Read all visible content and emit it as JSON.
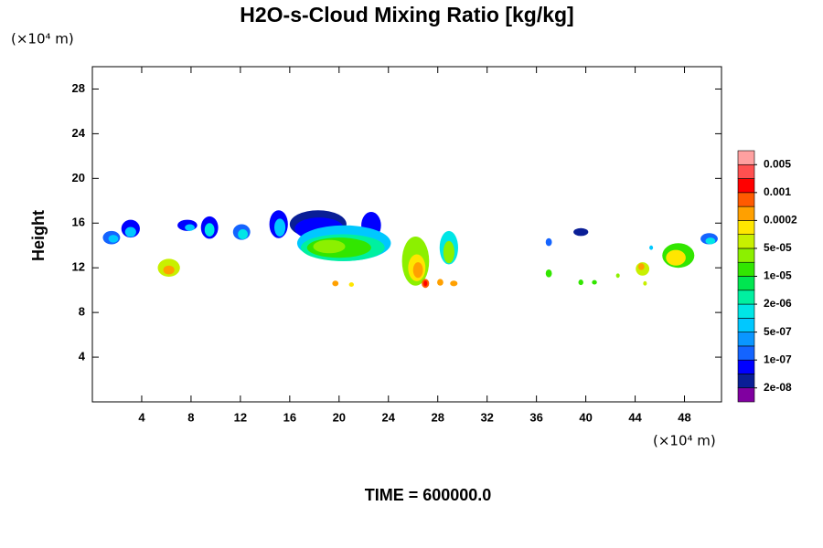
{
  "chart_data": {
    "type": "contour",
    "title": "H2O-s-Cloud Mixing Ratio [kg/kg]",
    "y_label": "Height",
    "y_unit": "(×10⁴ m)",
    "x_unit": "(×10⁴ m)",
    "footer": "TIME = 600000.0",
    "xlim": [
      0,
      51
    ],
    "ylim": [
      0,
      30
    ],
    "xticks": [
      4,
      8,
      12,
      16,
      20,
      24,
      28,
      32,
      36,
      40,
      44,
      48
    ],
    "yticks": [
      4,
      8,
      12,
      16,
      20,
      24,
      28
    ],
    "colorbar": {
      "colors": [
        "#8000a0",
        "#0a1e96",
        "#0000ff",
        "#1464ff",
        "#0a96ff",
        "#00c8ff",
        "#00e6e6",
        "#00f0a0",
        "#00e650",
        "#32e600",
        "#8cf000",
        "#c8f000",
        "#ffe600",
        "#ffa000",
        "#ff5a00",
        "#ff0000",
        "#ff5050",
        "#ffa0a0"
      ],
      "ticks": [
        {
          "value": 2e-08,
          "label": "2e-08"
        },
        {
          "value": 1e-07,
          "label": "1e-07"
        },
        {
          "value": 5e-07,
          "label": "5e-07"
        },
        {
          "value": 2e-06,
          "label": "2e-06"
        },
        {
          "value": 1e-05,
          "label": "1e-05"
        },
        {
          "value": 5e-05,
          "label": "5e-05"
        },
        0.0002,
        0.001,
        0.005
      ]
    },
    "patches": [
      {
        "x": 1.55,
        "y": 14.7,
        "rx": 0.7,
        "ry": 0.6,
        "color": "#1464ff"
      },
      {
        "x": 1.7,
        "y": 14.6,
        "rx": 0.4,
        "ry": 0.35,
        "color": "#00c8ff"
      },
      {
        "x": 3.1,
        "y": 15.5,
        "rx": 0.75,
        "ry": 0.8,
        "color": "#0000ff"
      },
      {
        "x": 3.1,
        "y": 15.2,
        "rx": 0.45,
        "ry": 0.45,
        "color": "#00c8ff"
      },
      {
        "x": 6.2,
        "y": 12.0,
        "rx": 0.9,
        "ry": 0.8,
        "color": "#c8f000"
      },
      {
        "x": 6.2,
        "y": 11.8,
        "rx": 0.45,
        "ry": 0.4,
        "color": "#ffa000"
      },
      {
        "x": 7.7,
        "y": 15.8,
        "rx": 0.8,
        "ry": 0.5,
        "color": "#0000ff"
      },
      {
        "x": 7.9,
        "y": 15.6,
        "rx": 0.4,
        "ry": 0.3,
        "color": "#00c8ff"
      },
      {
        "x": 9.5,
        "y": 15.6,
        "rx": 0.7,
        "ry": 1.0,
        "color": "#0000ff"
      },
      {
        "x": 9.5,
        "y": 15.4,
        "rx": 0.4,
        "ry": 0.6,
        "color": "#00e6e6"
      },
      {
        "x": 12.1,
        "y": 15.2,
        "rx": 0.7,
        "ry": 0.7,
        "color": "#1464ff"
      },
      {
        "x": 12.2,
        "y": 15.0,
        "rx": 0.4,
        "ry": 0.45,
        "color": "#00e6e6"
      },
      {
        "x": 15.1,
        "y": 15.9,
        "rx": 0.75,
        "ry": 1.25,
        "color": "#0000ff"
      },
      {
        "x": 15.2,
        "y": 15.6,
        "rx": 0.45,
        "ry": 0.8,
        "color": "#00c8ff"
      },
      {
        "x": 18.3,
        "y": 15.9,
        "rx": 2.3,
        "ry": 1.25,
        "color": "#0a1e96"
      },
      {
        "x": 18.4,
        "y": 15.5,
        "rx": 2.0,
        "ry": 1.0,
        "color": "#0000ff"
      },
      {
        "x": 22.6,
        "y": 15.8,
        "rx": 0.8,
        "ry": 1.2,
        "color": "#0000ff"
      },
      {
        "x": 20.4,
        "y": 14.2,
        "rx": 3.8,
        "ry": 1.6,
        "color": "#00c8ff"
      },
      {
        "x": 20.3,
        "y": 13.8,
        "rx": 3.4,
        "ry": 1.2,
        "color": "#00f0a0"
      },
      {
        "x": 20.0,
        "y": 13.8,
        "rx": 2.6,
        "ry": 0.9,
        "color": "#32e600"
      },
      {
        "x": 19.2,
        "y": 13.9,
        "rx": 1.3,
        "ry": 0.6,
        "color": "#8cf000"
      },
      {
        "x": 26.2,
        "y": 12.6,
        "rx": 1.1,
        "ry": 2.2,
        "color": "#8cf000"
      },
      {
        "x": 26.3,
        "y": 12.0,
        "rx": 0.7,
        "ry": 1.2,
        "color": "#ffe600"
      },
      {
        "x": 26.4,
        "y": 11.8,
        "rx": 0.4,
        "ry": 0.7,
        "color": "#ffa000"
      },
      {
        "x": 28.9,
        "y": 13.8,
        "rx": 0.75,
        "ry": 1.5,
        "color": "#00e6e6"
      },
      {
        "x": 28.9,
        "y": 13.4,
        "rx": 0.45,
        "ry": 1.0,
        "color": "#8cf000"
      },
      {
        "x": 19.7,
        "y": 10.6,
        "rx": 0.25,
        "ry": 0.25,
        "color": "#ffa000"
      },
      {
        "x": 21.0,
        "y": 10.5,
        "rx": 0.2,
        "ry": 0.2,
        "color": "#ffe600"
      },
      {
        "x": 27.0,
        "y": 10.6,
        "rx": 0.3,
        "ry": 0.4,
        "color": "#ff5a00"
      },
      {
        "x": 27.0,
        "y": 10.6,
        "rx": 0.15,
        "ry": 0.25,
        "color": "#ff0000"
      },
      {
        "x": 28.2,
        "y": 10.7,
        "rx": 0.25,
        "ry": 0.3,
        "color": "#ffa000"
      },
      {
        "x": 29.3,
        "y": 10.6,
        "rx": 0.3,
        "ry": 0.25,
        "color": "#ffa000"
      },
      {
        "x": 37.0,
        "y": 14.3,
        "rx": 0.25,
        "ry": 0.35,
        "color": "#1464ff"
      },
      {
        "x": 39.6,
        "y": 15.2,
        "rx": 0.6,
        "ry": 0.35,
        "color": "#0a1e96"
      },
      {
        "x": 37.0,
        "y": 11.5,
        "rx": 0.25,
        "ry": 0.35,
        "color": "#32e600"
      },
      {
        "x": 39.6,
        "y": 10.7,
        "rx": 0.2,
        "ry": 0.25,
        "color": "#32e600"
      },
      {
        "x": 40.7,
        "y": 10.7,
        "rx": 0.2,
        "ry": 0.2,
        "color": "#32e600"
      },
      {
        "x": 42.6,
        "y": 11.3,
        "rx": 0.15,
        "ry": 0.2,
        "color": "#8cf000"
      },
      {
        "x": 44.6,
        "y": 11.9,
        "rx": 0.55,
        "ry": 0.6,
        "color": "#c8f000"
      },
      {
        "x": 44.5,
        "y": 12.1,
        "rx": 0.25,
        "ry": 0.3,
        "color": "#ffa000"
      },
      {
        "x": 44.8,
        "y": 10.6,
        "rx": 0.15,
        "ry": 0.2,
        "color": "#c8f000"
      },
      {
        "x": 45.3,
        "y": 13.8,
        "rx": 0.15,
        "ry": 0.2,
        "color": "#00c8ff"
      },
      {
        "x": 47.5,
        "y": 13.1,
        "rx": 1.3,
        "ry": 1.1,
        "color": "#32e600"
      },
      {
        "x": 47.3,
        "y": 12.9,
        "rx": 0.8,
        "ry": 0.7,
        "color": "#ffe600"
      },
      {
        "x": 50.0,
        "y": 14.6,
        "rx": 0.7,
        "ry": 0.5,
        "color": "#1464ff"
      },
      {
        "x": 50.1,
        "y": 14.4,
        "rx": 0.4,
        "ry": 0.3,
        "color": "#00e6e6"
      }
    ]
  }
}
